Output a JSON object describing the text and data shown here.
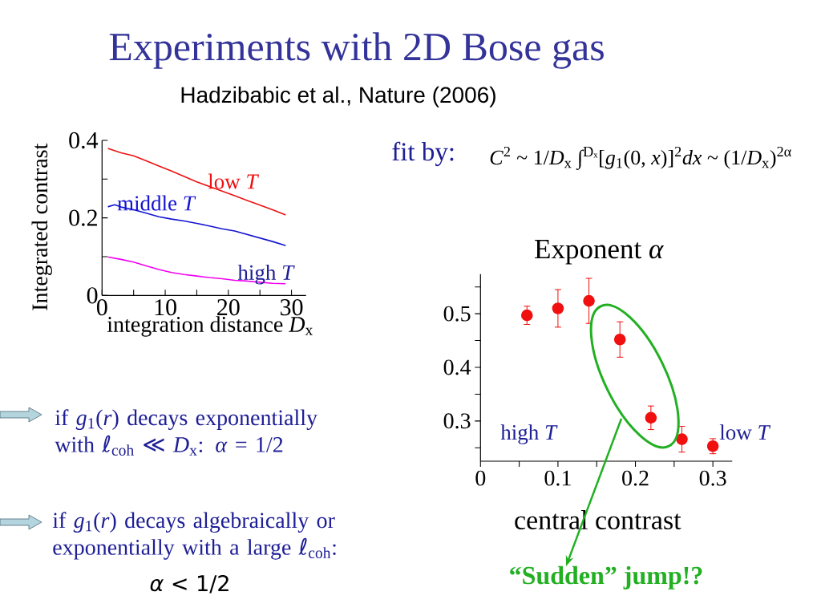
{
  "chart_data": [
    {
      "type": "line",
      "title": "Experiments with 2D Bose gas",
      "subtitle": "Hadzibabic et al., Nature (2006)",
      "xlabel": "integration distance *D*$_{x}$",
      "ylabel": "Integrated contrast",
      "x": [
        1,
        3,
        5,
        7,
        9,
        11,
        13,
        15,
        17,
        19,
        21,
        23,
        25,
        27,
        29
      ],
      "xlim": [
        0,
        32.3
      ],
      "xticks": [
        0,
        {
          "value": 5,
          "label": null
        },
        10,
        {
          "value": 15,
          "label": null
        },
        20,
        {
          "value": 25,
          "label": null
        },
        30
      ],
      "ylim": [
        0,
        0.4
      ],
      "yticks": [
        0,
        {
          "value": 0.1,
          "label": null
        },
        0.2,
        {
          "value": 0.3,
          "label": null
        },
        0.4
      ],
      "series": [
        {
          "name": "low *T*",
          "color": "#ee1111",
          "values": [
            0.379,
            0.368,
            0.36,
            0.347,
            0.334,
            0.321,
            0.307,
            0.293,
            0.281,
            0.269,
            0.257,
            0.245,
            0.233,
            0.221,
            0.208
          ]
        },
        {
          "name": "middle *T*",
          "color": "#1414d2",
          "x": [
            1,
            2,
            3,
            5,
            7,
            9,
            11,
            13,
            15,
            17,
            19,
            21,
            23,
            25,
            27,
            29
          ],
          "values": [
            0.229,
            0.234,
            0.228,
            0.221,
            0.212,
            0.203,
            0.197,
            0.192,
            0.186,
            0.179,
            0.172,
            0.166,
            0.157,
            0.148,
            0.139,
            0.129
          ]
        },
        {
          "name": "high *T*",
          "color": "#f000f0",
          "values": [
            0.099,
            0.093,
            0.086,
            0.076,
            0.067,
            0.059,
            0.054,
            0.05,
            0.046,
            0.043,
            0.039,
            0.037,
            0.034,
            0.031,
            0.03
          ]
        }
      ],
      "annotations": [
        "if *g*$_{1}$(*r*) decays exponentially with ℓ$_{coh}$ ≪ *D*$_{x}$:  *α* = 1/2",
        "if *g*$_{1}$(*r*) decays algebraically or exponentially with a large ℓ$_{coh}$:",
        "*α* < 1/2"
      ]
    },
    {
      "type": "scatter",
      "title": "Exponent *α*",
      "xlabel": "central contrast",
      "color": "#f01010",
      "marker": "circle",
      "x": [
        0.06,
        0.1,
        0.14,
        0.18,
        0.22,
        0.26,
        0.3
      ],
      "values": [
        0.497,
        0.51,
        0.524,
        0.452,
        0.306,
        0.266,
        0.253
      ],
      "errors": [
        0.017,
        0.035,
        0.042,
        0.033,
        0.022,
        0.024,
        0.014
      ],
      "xlim": [
        0,
        0.325
      ],
      "xticks": [
        0,
        {
          "value": 0.05,
          "label": null
        },
        0.1,
        {
          "value": 0.15,
          "label": null
        },
        0.2,
        {
          "value": 0.25,
          "label": null
        },
        0.3
      ],
      "ylim": [
        0.225,
        0.574
      ],
      "yticks": [
        {
          "value": 0.25,
          "label": null
        },
        0.3,
        {
          "value": 0.35,
          "label": null
        },
        0.4,
        {
          "value": 0.45,
          "label": null
        },
        0.5,
        {
          "value": 0.55,
          "label": null
        }
      ],
      "annotations": [
        "fit by:",
        "*C*$^{2}$ ~ 1/*D*$_{x}$ ∫$^{Dₓ}$[*g*$_{1}$(0, *x*)]$^{2}$*dx* ~ (1/*D*$_{x}$)$^{2α}$",
        "high *T*",
        "low *T*",
        "“Sudden” jump!?"
      ]
    }
  ]
}
